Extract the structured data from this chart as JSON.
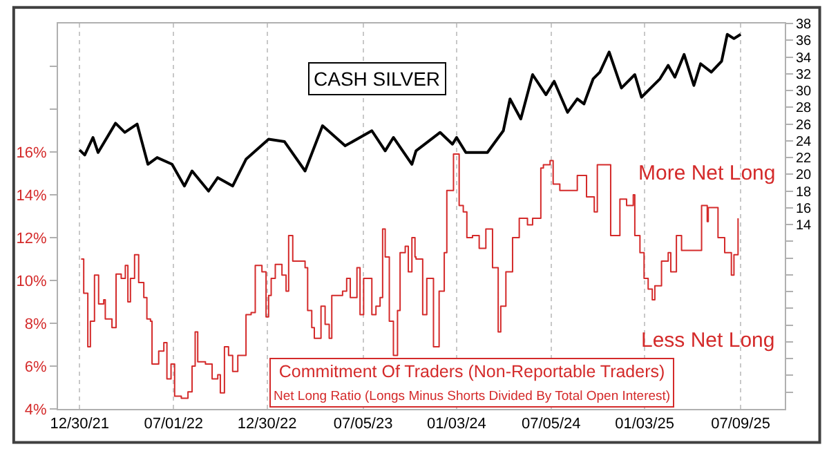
{
  "chart_data": {
    "type": "line",
    "title": "CASH SILVER",
    "annotations": [
      "More Net Long",
      "Less Net Long",
      "Commitment Of Traders (Non-Reportable Traders)",
      "Net Long Ratio (Longs Minus Shorts Divided By Total Open Interest)"
    ],
    "series": [
      {
        "type": "line",
        "axis": "y2",
        "color": "#000000",
        "x": [
          "2021-12-30",
          "2022-01-09",
          "2022-01-25",
          "2022-02-04",
          "2022-03-10",
          "2022-03-28",
          "2022-04-21",
          "2022-05-12",
          "2022-05-30",
          "2022-06-28",
          "2022-07-22",
          "2022-08-06",
          "2022-09-07",
          "2022-09-25",
          "2022-10-24",
          "2022-11-19",
          "2023-01-02",
          "2023-02-02",
          "2023-03-14",
          "2023-04-17",
          "2023-05-31",
          "2023-07-22",
          "2023-08-17",
          "2023-09-02",
          "2023-10-08",
          "2023-10-16",
          "2023-12-02",
          "2023-12-26",
          "2024-01-03",
          "2024-01-21",
          "2024-03-03",
          "2024-04-03",
          "2024-04-16",
          "2024-05-07",
          "2024-05-30",
          "2024-06-25",
          "2024-07-11",
          "2024-08-06",
          "2024-08-25",
          "2024-09-07",
          "2024-09-25",
          "2024-10-08",
          "2024-10-26",
          "2024-11-19",
          "2024-12-15",
          "2024-12-28",
          "2025-01-10",
          "2025-02-02",
          "2025-02-18",
          "2025-03-03",
          "2025-03-21",
          "2025-04-09",
          "2025-04-22",
          "2025-05-13",
          "2025-06-02",
          "2025-06-13",
          "2025-06-26",
          "2025-07-09"
        ],
        "values": [
          22.9,
          22.3,
          24.4,
          22.6,
          26.1,
          25.0,
          26.0,
          21.2,
          22.0,
          21.2,
          18.6,
          20.4,
          18.0,
          19.6,
          18.6,
          21.8,
          24.2,
          23.9,
          20.4,
          25.8,
          23.4,
          25.2,
          22.8,
          24.4,
          21.2,
          22.8,
          25.0,
          23.6,
          24.4,
          22.6,
          22.6,
          25.2,
          29.0,
          26.6,
          31.9,
          29.5,
          31.1,
          27.4,
          29.0,
          28.4,
          31.4,
          32.2,
          34.6,
          30.3,
          31.9,
          29.2,
          30.0,
          31.4,
          33.0,
          31.6,
          34.3,
          30.6,
          33.2,
          32.2,
          33.5,
          36.7,
          36.2,
          36.7
        ]
      },
      {
        "type": "step",
        "axis": "y",
        "color": "#d42a2a",
        "x": [
          "2022-01-02",
          "2022-01-07",
          "2022-01-15",
          "2022-01-20",
          "2022-01-28",
          "2022-02-05",
          "2022-02-15",
          "2022-02-18",
          "2022-03-03",
          "2022-03-11",
          "2022-03-21",
          "2022-03-29",
          "2022-04-03",
          "2022-04-08",
          "2022-04-16",
          "2022-04-24",
          "2022-05-04",
          "2022-05-10",
          "2022-05-17",
          "2022-05-20",
          "2022-06-02",
          "2022-06-12",
          "2022-06-18",
          "2022-06-26",
          "2022-07-03",
          "2022-07-16",
          "2022-07-29",
          "2022-08-06",
          "2022-08-12",
          "2022-08-17",
          "2022-09-01",
          "2022-09-14",
          "2022-09-25",
          "2022-09-30",
          "2022-10-08",
          "2022-10-16",
          "2022-10-24",
          "2022-11-03",
          "2022-11-19",
          "2022-11-29",
          "2022-12-07",
          "2022-12-20",
          "2022-12-28",
          "2023-01-02",
          "2023-01-07",
          "2023-01-15",
          "2023-01-28",
          "2023-02-05",
          "2023-02-10",
          "2023-02-18",
          "2023-03-14",
          "2023-03-19",
          "2023-03-27",
          "2023-04-01",
          "2023-04-14",
          "2023-04-22",
          "2023-04-30",
          "2023-05-05",
          "2023-05-26",
          "2023-06-03",
          "2023-06-10",
          "2023-06-23",
          "2023-06-29",
          "2023-07-06",
          "2023-07-22",
          "2023-07-30",
          "2023-08-07",
          "2023-08-12",
          "2023-08-17",
          "2023-08-25",
          "2023-09-02",
          "2023-09-10",
          "2023-09-15",
          "2023-09-25",
          "2023-10-01",
          "2023-10-08",
          "2023-10-14",
          "2023-10-16",
          "2023-10-29",
          "2023-11-06",
          "2023-11-19",
          "2023-11-30",
          "2023-12-10",
          "2023-12-15",
          "2023-12-28",
          "2024-01-08",
          "2024-01-16",
          "2024-01-23",
          "2024-02-03",
          "2024-02-16",
          "2024-02-29",
          "2024-03-13",
          "2024-03-24",
          "2024-03-29",
          "2024-04-08",
          "2024-04-21",
          "2024-05-04",
          "2024-05-20",
          "2024-05-30",
          "2024-06-15",
          "2024-06-20",
          "2024-07-03",
          "2024-07-09",
          "2024-07-22",
          "2024-08-11",
          "2024-08-25",
          "2024-09-12",
          "2024-09-27",
          "2024-10-03",
          "2024-10-24",
          "2024-10-29",
          "2024-11-16",
          "2024-11-29",
          "2024-12-12",
          "2024-12-15",
          "2024-12-25",
          "2025-01-02",
          "2025-01-10",
          "2025-01-18",
          "2025-01-23",
          "2025-02-05",
          "2025-02-18",
          "2025-02-23",
          "2025-03-06",
          "2025-03-16",
          "2025-03-29",
          "2025-04-11",
          "2025-04-24",
          "2025-05-05",
          "2025-05-07",
          "2025-05-20",
          "2025-05-26",
          "2025-06-08",
          "2025-06-21",
          "2025-06-26",
          "2025-07-04"
        ],
        "values": [
          11.0,
          9.4,
          6.9,
          8.1,
          10.25,
          8.9,
          9.1,
          8.2,
          7.8,
          10.3,
          10.1,
          10.7,
          9.0,
          10.1,
          11.2,
          9.9,
          9.2,
          8.2,
          8.1,
          6.1,
          6.7,
          7.1,
          5.4,
          6.1,
          4.6,
          4.5,
          4.8,
          6.0,
          7.6,
          6.2,
          6.1,
          5.4,
          5.6,
          4.75,
          6.9,
          6.5,
          5.75,
          6.5,
          8.4,
          8.5,
          10.7,
          10.4,
          8.3,
          9.3,
          10.1,
          10.75,
          10.25,
          9.5,
          12.1,
          10.9,
          10.6,
          8.6,
          7.8,
          7.3,
          8.8,
          7.95,
          7.3,
          9.3,
          9.5,
          10.1,
          9.2,
          10.6,
          8.4,
          10.1,
          8.4,
          8.8,
          9.2,
          12.4,
          11.1,
          8.1,
          6.5,
          8.6,
          11.3,
          11.6,
          10.4,
          12.0,
          11.1,
          11.0,
          8.4,
          10.1,
          6.9,
          9.5,
          11.3,
          14.2,
          15.9,
          13.5,
          13.2,
          12.0,
          12.1,
          11.5,
          12.4,
          10.6,
          7.6,
          8.8,
          10.4,
          12.0,
          12.9,
          12.6,
          12.9,
          15.25,
          15.4,
          15.6,
          14.5,
          14.2,
          14.2,
          14.9,
          13.9,
          13.2,
          15.4,
          15.4,
          12.1,
          13.8,
          13.5,
          14.0,
          12.1,
          11.3,
          10.1,
          9.6,
          9.1,
          9.75,
          10.9,
          11.3,
          10.4,
          12.1,
          11.4,
          11.4,
          11.4,
          13.5,
          12.75,
          13.4,
          13.4,
          12.0,
          11.3,
          10.25,
          11.2,
          12.9
        ]
      }
    ],
    "xlim": [
      "2021-11-18",
      "2025-10-03"
    ],
    "xticks": [
      {
        "value": "2021-12-30",
        "label": "12/30/21"
      },
      {
        "value": "2022-07-01",
        "label": "07/01/22"
      },
      {
        "value": "2022-12-30",
        "label": "12/30/22"
      },
      {
        "value": "2023-07-05",
        "label": "07/05/23"
      },
      {
        "value": "2024-01-03",
        "label": "01/03/24"
      },
      {
        "value": "2024-07-05",
        "label": "07/05/24"
      },
      {
        "value": "2025-01-03",
        "label": "01/03/25"
      },
      {
        "value": "2025-07-09",
        "label": "07/09/25"
      }
    ],
    "ylim": [
      4,
      22
    ],
    "yticks": [
      {
        "value": 4,
        "label": "4%"
      },
      {
        "value": 6,
        "label": "6%"
      },
      {
        "value": 8,
        "label": "8%"
      },
      {
        "value": 10,
        "label": "10%"
      },
      {
        "value": 12,
        "label": "12%"
      },
      {
        "value": 14,
        "label": "14%"
      },
      {
        "value": 16,
        "label": "16%"
      },
      {
        "value": 18,
        "label": null
      },
      {
        "value": 20,
        "label": null
      }
    ],
    "y2lim": [
      -8,
      38
    ],
    "y2ticks": [
      {
        "value": -6,
        "label": null
      },
      {
        "value": -4,
        "label": null
      },
      {
        "value": -2,
        "label": null
      },
      {
        "value": 0,
        "label": null
      },
      {
        "value": 2,
        "label": null
      },
      {
        "value": 4,
        "label": null
      },
      {
        "value": 6,
        "label": null
      },
      {
        "value": 8,
        "label": null
      },
      {
        "value": 10,
        "label": null
      },
      {
        "value": 12,
        "label": null
      },
      14,
      16,
      18,
      20,
      22,
      24,
      26,
      28,
      30,
      32,
      34,
      36,
      38
    ],
    "grid": "x"
  }
}
